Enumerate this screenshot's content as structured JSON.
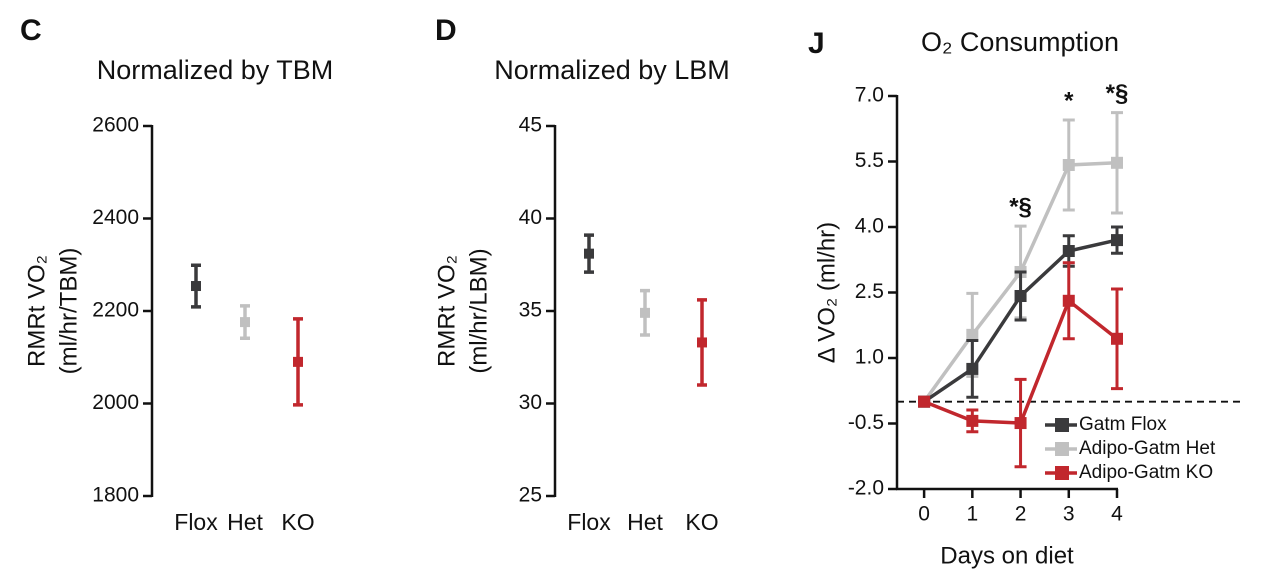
{
  "chart_data": [
    {
      "type": "errorbar",
      "panel": "C",
      "title": "Normalized by TBM",
      "y_label": [
        "RMRt VO₂",
        "(ml/hr/TBM)"
      ],
      "categories": [
        "Flox",
        "Het",
        "KO"
      ],
      "values": [
        2254,
        2176,
        2090
      ],
      "errors": [
        45,
        35,
        93
      ],
      "colors": [
        "#3a3a3c",
        "#c0c0c0",
        "#c1272d"
      ],
      "ylim": [
        1800,
        2600
      ],
      "yticks": [
        1800,
        2000,
        2200,
        2400,
        2600
      ]
    },
    {
      "type": "errorbar",
      "panel": "D",
      "title": "Normalized by LBM",
      "y_label": [
        "RMRt VO₂",
        "(ml/hr/LBM)"
      ],
      "categories": [
        "Flox",
        "Het",
        "KO"
      ],
      "values": [
        38.1,
        34.9,
        33.3
      ],
      "errors": [
        1.0,
        1.2,
        2.3
      ],
      "colors": [
        "#3a3a3c",
        "#c0c0c0",
        "#c1272d"
      ],
      "ylim": [
        25,
        45
      ],
      "yticks": [
        25,
        30,
        35,
        40,
        45
      ]
    },
    {
      "type": "line",
      "panel": "J",
      "title": "O₂ Consumption",
      "x_label": "Days on diet",
      "y_label": [
        "Δ VO₂ (ml/hr)"
      ],
      "x": [
        0,
        1,
        2,
        3,
        4
      ],
      "series": [
        {
          "name": "Gatm Flox",
          "color": "#3a3a3c",
          "values": [
            0,
            0.75,
            2.42,
            3.45,
            3.7
          ],
          "errors": [
            0,
            0.65,
            0.55,
            0.35,
            0.3
          ]
        },
        {
          "name": "Adipo-Gatm Het",
          "color": "#c0c0c0",
          "values": [
            0,
            1.53,
            2.97,
            5.42,
            5.47
          ],
          "errors": [
            0,
            0.95,
            1.05,
            1.03,
            1.15
          ]
        },
        {
          "name": "Adipo-Gatm KO",
          "color": "#c1272d",
          "values": [
            0,
            -0.44,
            -0.49,
            2.31,
            1.44
          ],
          "errors": [
            0,
            0.25,
            1.0,
            0.87,
            1.14
          ]
        }
      ],
      "hline": 0,
      "annotations": [
        {
          "x": 2,
          "text": "*§"
        },
        {
          "x": 3,
          "text": "*"
        },
        {
          "x": 4,
          "text": "*§"
        }
      ],
      "xlim": [
        -0.5,
        4
      ],
      "xticks": [
        0,
        1,
        2,
        3,
        4
      ],
      "ylim": [
        -2,
        7
      ],
      "yticks": [
        {
          "value": -2,
          "label": "-2.0"
        },
        {
          "value": -0.5,
          "label": "-0.5"
        },
        {
          "value": 1,
          "label": "1.0"
        },
        {
          "value": 2.5,
          "label": "2.5"
        },
        {
          "value": 4,
          "label": "4.0"
        },
        {
          "value": 5.5,
          "label": "5.5"
        },
        {
          "value": 7,
          "label": "7.0"
        }
      ],
      "legend": "lower right"
    }
  ]
}
